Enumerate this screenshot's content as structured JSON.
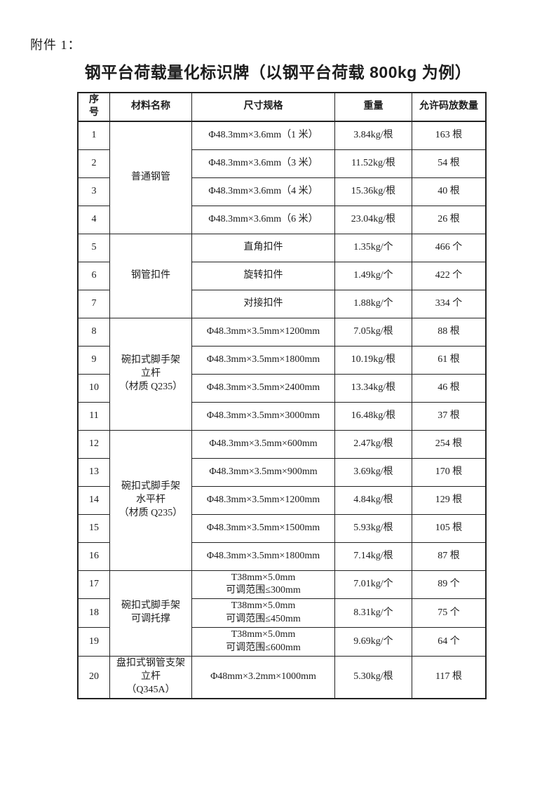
{
  "page": {
    "attachment_label": "附件 1：",
    "title": "钢平台荷载量化标识牌（以钢平台荷载 800kg 为例）"
  },
  "table": {
    "headers": {
      "no": "序号",
      "material": "材料名称",
      "spec": "尺寸规格",
      "weight": "重量",
      "qty": "允许码放数量"
    },
    "groups": [
      {
        "material": [
          "普通钢管"
        ],
        "rows": [
          {
            "no": "1",
            "spec": [
              "Φ48.3mm×3.6mm（1 米）"
            ],
            "weight": "3.84kg/根",
            "qty": "163 根"
          },
          {
            "no": "2",
            "spec": [
              "Φ48.3mm×3.6mm（3 米）"
            ],
            "weight": "11.52kg/根",
            "qty": "54 根"
          },
          {
            "no": "3",
            "spec": [
              "Φ48.3mm×3.6mm（4 米）"
            ],
            "weight": "15.36kg/根",
            "qty": "40 根"
          },
          {
            "no": "4",
            "spec": [
              "Φ48.3mm×3.6mm（6 米）"
            ],
            "weight": "23.04kg/根",
            "qty": "26 根"
          }
        ]
      },
      {
        "material": [
          "钢管扣件"
        ],
        "rows": [
          {
            "no": "5",
            "spec": [
              "直角扣件"
            ],
            "weight": "1.35kg/个",
            "qty": "466 个"
          },
          {
            "no": "6",
            "spec": [
              "旋转扣件"
            ],
            "weight": "1.49kg/个",
            "qty": "422 个"
          },
          {
            "no": "7",
            "spec": [
              "对接扣件"
            ],
            "weight": "1.88kg/个",
            "qty": "334 个"
          }
        ]
      },
      {
        "material": [
          "碗扣式脚手架",
          "立杆",
          "（材质 Q235）"
        ],
        "rows": [
          {
            "no": "8",
            "spec": [
              "Φ48.3mm×3.5mm×1200mm"
            ],
            "weight": "7.05kg/根",
            "qty": "88 根"
          },
          {
            "no": "9",
            "spec": [
              "Φ48.3mm×3.5mm×1800mm"
            ],
            "weight": "10.19kg/根",
            "qty": "61 根"
          },
          {
            "no": "10",
            "spec": [
              "Φ48.3mm×3.5mm×2400mm"
            ],
            "weight": "13.34kg/根",
            "qty": "46 根"
          },
          {
            "no": "11",
            "spec": [
              "Φ48.3mm×3.5mm×3000mm"
            ],
            "weight": "16.48kg/根",
            "qty": "37 根"
          }
        ]
      },
      {
        "material": [
          "碗扣式脚手架",
          "水平杆",
          "（材质 Q235）"
        ],
        "rows": [
          {
            "no": "12",
            "spec": [
              "Φ48.3mm×3.5mm×600mm"
            ],
            "weight": "2.47kg/根",
            "qty": "254 根"
          },
          {
            "no": "13",
            "spec": [
              "Φ48.3mm×3.5mm×900mm"
            ],
            "weight": "3.69kg/根",
            "qty": "170 根"
          },
          {
            "no": "14",
            "spec": [
              "Φ48.3mm×3.5mm×1200mm"
            ],
            "weight": "4.84kg/根",
            "qty": "129 根"
          },
          {
            "no": "15",
            "spec": [
              "Φ48.3mm×3.5mm×1500mm"
            ],
            "weight": "5.93kg/根",
            "qty": "105 根"
          },
          {
            "no": "16",
            "spec": [
              "Φ48.3mm×3.5mm×1800mm"
            ],
            "weight": "7.14kg/根",
            "qty": "87 根"
          }
        ]
      },
      {
        "material": [
          "碗扣式脚手架",
          "可调托撑"
        ],
        "rows": [
          {
            "no": "17",
            "spec": [
              "T38mm×5.0mm",
              "可调范围≤300mm"
            ],
            "weight": "7.01kg/个",
            "qty": "89 个"
          },
          {
            "no": "18",
            "spec": [
              "T38mm×5.0mm",
              "可调范围≤450mm"
            ],
            "weight": "8.31kg/个",
            "qty": "75 个"
          },
          {
            "no": "19",
            "spec": [
              "T38mm×5.0mm",
              "可调范围≤600mm"
            ],
            "weight": "9.69kg/个",
            "qty": "64 个"
          }
        ]
      },
      {
        "material": [
          "盘扣式钢管支架",
          "立杆",
          "（Q345A）"
        ],
        "rows": [
          {
            "no": "20",
            "spec": [
              "Φ48mm×3.2mm×1000mm"
            ],
            "weight": "5.30kg/根",
            "qty": "117 根"
          }
        ]
      }
    ]
  }
}
